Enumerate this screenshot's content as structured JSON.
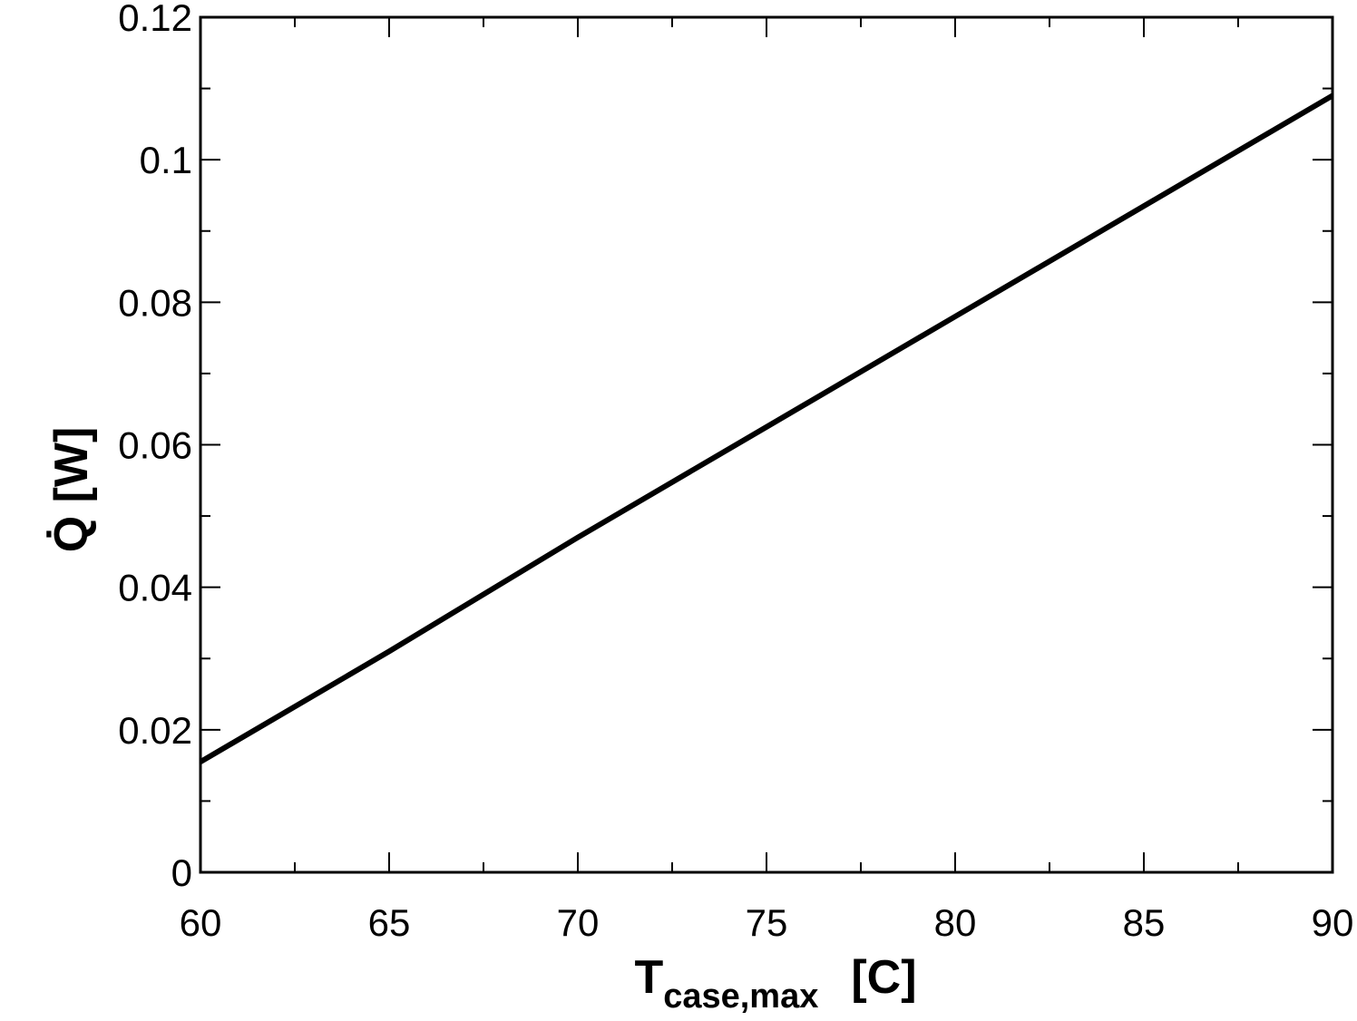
{
  "chart_data": {
    "type": "line",
    "xlabel": {
      "main": "T",
      "sub": "case,max",
      "unit": "[C]"
    },
    "ylabel": "Q̇  [W]",
    "x": [
      60,
      65,
      70,
      75,
      80,
      85,
      90
    ],
    "series": [
      {
        "color": "#000000",
        "values": [
          0.0155,
          0.031,
          0.047,
          0.0625,
          0.078,
          0.0935,
          0.109
        ]
      }
    ],
    "xlim": [
      60,
      90
    ],
    "xticks": [
      60,
      65,
      70,
      75,
      80,
      85,
      90
    ],
    "xminorticks": [
      62.5,
      67.5,
      72.5,
      77.5,
      82.5,
      87.5
    ],
    "ylim": [
      0,
      0.12
    ],
    "yticks": [
      0,
      0.02,
      0.04,
      0.06,
      0.08,
      0.1,
      0.12
    ],
    "yminorticks": [
      0.01,
      0.03,
      0.05,
      0.07,
      0.09,
      0.11
    ]
  }
}
